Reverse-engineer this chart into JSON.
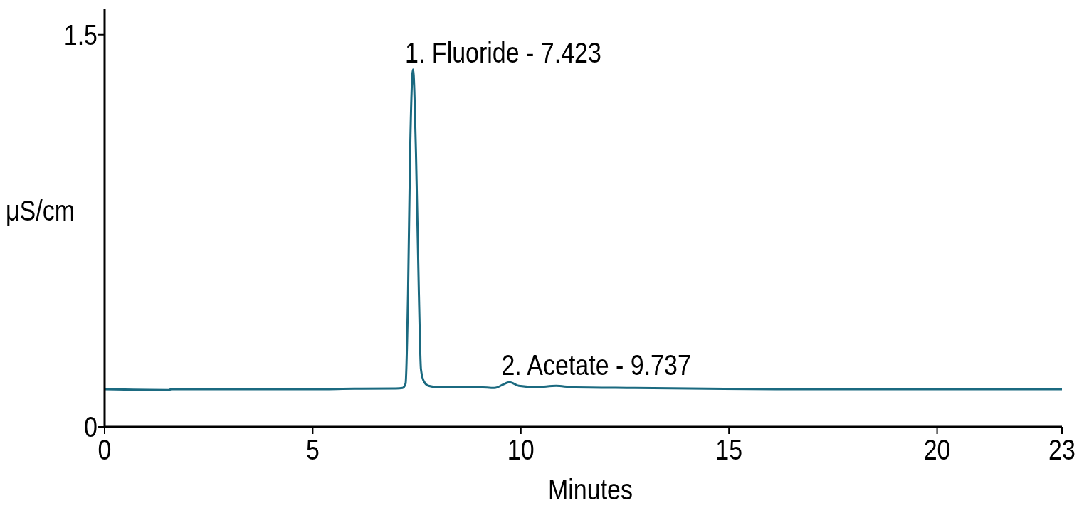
{
  "chart_data": {
    "type": "line",
    "xlabel": "Minutes",
    "ylabel": "μS/cm",
    "xlim": [
      0,
      23
    ],
    "ylim": [
      0,
      1.6
    ],
    "xticks": [
      0,
      5,
      10,
      15,
      20,
      23
    ],
    "yticks": [
      0,
      1.5
    ],
    "grid": false,
    "marker": "none",
    "line_style": "solid",
    "series": [
      {
        "color": "#1b6a80",
        "x": [
          0,
          1.54,
          1.6,
          4.96,
          6.0,
          7.0,
          7.16,
          7.23,
          7.29,
          7.34,
          7.41,
          7.48,
          7.55,
          7.6,
          7.67,
          7.78,
          8.0,
          9.02,
          9.36,
          9.73,
          9.95,
          10.37,
          10.85,
          11.22,
          12.74,
          16.13,
          23
        ],
        "values": [
          0.144,
          0.141,
          0.144,
          0.144,
          0.146,
          0.147,
          0.149,
          0.165,
          0.51,
          1.05,
          1.367,
          1.05,
          0.51,
          0.22,
          0.174,
          0.157,
          0.152,
          0.152,
          0.149,
          0.171,
          0.157,
          0.152,
          0.157,
          0.152,
          0.149,
          0.144,
          0.144
        ]
      }
    ],
    "annotations": [
      {
        "text": "1. Fluoride - 7.423",
        "x": 7.423,
        "y": 1.367
      },
      {
        "text": "2. Acetate - 9.737",
        "x": 9.737,
        "y": 0.171
      }
    ]
  }
}
